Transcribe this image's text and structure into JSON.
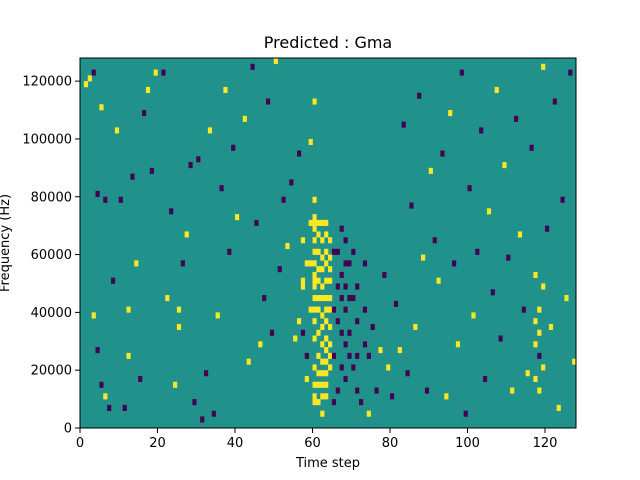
{
  "chart_data": {
    "type": "heatmap",
    "title": "Predicted : Gma",
    "xlabel": "Time step",
    "ylabel": "Frequency (Hz)",
    "xlim": [
      0,
      128
    ],
    "ylim": [
      0,
      128000
    ],
    "x_ticks": [
      0,
      20,
      40,
      60,
      80,
      100,
      120
    ],
    "y_ticks": [
      0,
      20000,
      40000,
      60000,
      80000,
      100000,
      120000
    ],
    "x_tick_labels": [
      "0",
      "20",
      "40",
      "60",
      "80",
      "100",
      "120"
    ],
    "y_tick_labels": [
      "0",
      "20000",
      "40000",
      "60000",
      "80000",
      "100000",
      "120000"
    ],
    "grid": false,
    "colormap": "viridis",
    "value_range": [
      -1,
      1
    ],
    "colors": {
      "-1": "#440154",
      "0": "#21918c",
      "1": "#fde725"
    },
    "n_time_steps": 128,
    "n_frequency_bins": 64,
    "frequency_bin_hz": 2000,
    "background_value": 0,
    "cells": [
      [
        1,
        59,
        1
      ],
      [
        2,
        60,
        1
      ],
      [
        3,
        61,
        -1
      ],
      [
        5,
        55,
        1
      ],
      [
        6,
        39,
        -1
      ],
      [
        7,
        3,
        -1
      ],
      [
        4,
        40,
        -1
      ],
      [
        3,
        19,
        1
      ],
      [
        4,
        13,
        -1
      ],
      [
        5,
        7,
        -1
      ],
      [
        6,
        5,
        1
      ],
      [
        8,
        25,
        -1
      ],
      [
        9,
        51,
        1
      ],
      [
        10,
        39,
        -1
      ],
      [
        11,
        3,
        -1
      ],
      [
        12,
        12,
        1
      ],
      [
        12,
        20,
        1
      ],
      [
        13,
        43,
        -1
      ],
      [
        14,
        28,
        1
      ],
      [
        15,
        8,
        -1
      ],
      [
        16,
        54,
        -1
      ],
      [
        17,
        58,
        1
      ],
      [
        18,
        44,
        -1
      ],
      [
        19,
        61,
        1
      ],
      [
        21,
        61,
        -1
      ],
      [
        22,
        22,
        1
      ],
      [
        23,
        37,
        -1
      ],
      [
        24,
        7,
        1
      ],
      [
        25,
        17,
        1
      ],
      [
        25,
        20,
        1
      ],
      [
        26,
        28,
        -1
      ],
      [
        27,
        33,
        1
      ],
      [
        28,
        45,
        -1
      ],
      [
        29,
        4,
        -1
      ],
      [
        30,
        46,
        -1
      ],
      [
        31,
        1,
        -1
      ],
      [
        32,
        9,
        -1
      ],
      [
        33,
        51,
        1
      ],
      [
        34,
        2,
        -1
      ],
      [
        35,
        19,
        1
      ],
      [
        36,
        41,
        -1
      ],
      [
        37,
        58,
        1
      ],
      [
        38,
        30,
        -1
      ],
      [
        39,
        48,
        -1
      ],
      [
        40,
        36,
        1
      ],
      [
        42,
        53,
        1
      ],
      [
        43,
        11,
        1
      ],
      [
        44,
        62,
        -1
      ],
      [
        45,
        35,
        -1
      ],
      [
        46,
        14,
        1
      ],
      [
        47,
        22,
        -1
      ],
      [
        48,
        56,
        -1
      ],
      [
        49,
        16,
        -1
      ],
      [
        50,
        63,
        1
      ],
      [
        51,
        27,
        -1
      ],
      [
        52,
        39,
        -1
      ],
      [
        53,
        31,
        1
      ],
      [
        54,
        42,
        -1
      ],
      [
        55,
        15,
        1
      ],
      [
        56,
        47,
        -1
      ],
      [
        57,
        25,
        1
      ],
      [
        58,
        12,
        -1
      ],
      [
        59,
        49,
        1
      ],
      [
        60,
        56,
        1
      ],
      [
        56,
        18,
        1
      ],
      [
        57,
        16,
        -1
      ],
      [
        57,
        24,
        1
      ],
      [
        57,
        32,
        1
      ],
      [
        58,
        8,
        1
      ],
      [
        58,
        28,
        1
      ],
      [
        59,
        20,
        1
      ],
      [
        59,
        28,
        1
      ],
      [
        59,
        35,
        1
      ],
      [
        60,
        4,
        1
      ],
      [
        60,
        5,
        1
      ],
      [
        60,
        7,
        1
      ],
      [
        60,
        10,
        1
      ],
      [
        60,
        15,
        1
      ],
      [
        60,
        18,
        1
      ],
      [
        60,
        20,
        1
      ],
      [
        60,
        22,
        1
      ],
      [
        60,
        24,
        1
      ],
      [
        60,
        25,
        1
      ],
      [
        60,
        26,
        1
      ],
      [
        60,
        28,
        1
      ],
      [
        60,
        30,
        1
      ],
      [
        60,
        32,
        1
      ],
      [
        60,
        34,
        1
      ],
      [
        60,
        35,
        1
      ],
      [
        60,
        36,
        1
      ],
      [
        60,
        39,
        1
      ],
      [
        61,
        4,
        1
      ],
      [
        61,
        7,
        1
      ],
      [
        61,
        9,
        1
      ],
      [
        61,
        12,
        1
      ],
      [
        61,
        16,
        1
      ],
      [
        61,
        20,
        1
      ],
      [
        61,
        22,
        1
      ],
      [
        61,
        25,
        1
      ],
      [
        61,
        27,
        1
      ],
      [
        61,
        30,
        1
      ],
      [
        61,
        33,
        1
      ],
      [
        61,
        35,
        1
      ],
      [
        62,
        2,
        1
      ],
      [
        62,
        5,
        1
      ],
      [
        62,
        7,
        1
      ],
      [
        62,
        9,
        1
      ],
      [
        62,
        11,
        1
      ],
      [
        62,
        14,
        1
      ],
      [
        62,
        17,
        1
      ],
      [
        62,
        19,
        1
      ],
      [
        62,
        22,
        1
      ],
      [
        62,
        24,
        1
      ],
      [
        62,
        27,
        1
      ],
      [
        62,
        29,
        1
      ],
      [
        62,
        32,
        1
      ],
      [
        62,
        35,
        1
      ],
      [
        63,
        5,
        1
      ],
      [
        63,
        7,
        1
      ],
      [
        63,
        9,
        1
      ],
      [
        63,
        11,
        1
      ],
      [
        63,
        13,
        1
      ],
      [
        63,
        15,
        1
      ],
      [
        63,
        18,
        1
      ],
      [
        63,
        20,
        1
      ],
      [
        63,
        22,
        1
      ],
      [
        63,
        25,
        1
      ],
      [
        63,
        28,
        1
      ],
      [
        63,
        30,
        1
      ],
      [
        63,
        33,
        1
      ],
      [
        63,
        35,
        1
      ],
      [
        64,
        10,
        1
      ],
      [
        64,
        12,
        1
      ],
      [
        64,
        14,
        1
      ],
      [
        64,
        17,
        1
      ],
      [
        64,
        20,
        1
      ],
      [
        64,
        22,
        1
      ],
      [
        64,
        25,
        1
      ],
      [
        64,
        27,
        1
      ],
      [
        64,
        29,
        1
      ],
      [
        64,
        32,
        1
      ],
      [
        65,
        4,
        -1
      ],
      [
        65,
        12,
        -1
      ],
      [
        65,
        20,
        -1
      ],
      [
        65,
        30,
        -1
      ],
      [
        66,
        6,
        -1
      ],
      [
        66,
        18,
        -1
      ],
      [
        66,
        24,
        -1
      ],
      [
        66,
        30,
        -1
      ],
      [
        67,
        10,
        -1
      ],
      [
        67,
        16,
        -1
      ],
      [
        67,
        22,
        -1
      ],
      [
        67,
        26,
        -1
      ],
      [
        67,
        34,
        -1
      ],
      [
        68,
        8,
        -1
      ],
      [
        68,
        14,
        -1
      ],
      [
        68,
        20,
        -1
      ],
      [
        68,
        24,
        -1
      ],
      [
        68,
        28,
        -1
      ],
      [
        68,
        32,
        -1
      ],
      [
        69,
        12,
        -1
      ],
      [
        69,
        16,
        -1
      ],
      [
        69,
        22,
        -1
      ],
      [
        69,
        28,
        -1
      ],
      [
        70,
        10,
        -1
      ],
      [
        70,
        22,
        -1
      ],
      [
        70,
        30,
        -1
      ],
      [
        71,
        6,
        -1
      ],
      [
        71,
        12,
        -1
      ],
      [
        71,
        18,
        -1
      ],
      [
        71,
        24,
        -1
      ],
      [
        72,
        4,
        -1
      ],
      [
        73,
        14,
        -1
      ],
      [
        73,
        20,
        -1
      ],
      [
        73,
        28,
        -1
      ],
      [
        74,
        2,
        1
      ],
      [
        74,
        12,
        -1
      ],
      [
        75,
        17,
        -1
      ],
      [
        76,
        6,
        -1
      ],
      [
        77,
        13,
        1
      ],
      [
        78,
        26,
        -1
      ],
      [
        79,
        10,
        1
      ],
      [
        80,
        5,
        -1
      ],
      [
        81,
        21,
        -1
      ],
      [
        82,
        13,
        1
      ],
      [
        83,
        52,
        -1
      ],
      [
        84,
        9,
        -1
      ],
      [
        85,
        38,
        -1
      ],
      [
        86,
        17,
        1
      ],
      [
        87,
        57,
        -1
      ],
      [
        88,
        29,
        1
      ],
      [
        89,
        6,
        -1
      ],
      [
        90,
        44,
        1
      ],
      [
        91,
        32,
        -1
      ],
      [
        92,
        25,
        1
      ],
      [
        93,
        47,
        -1
      ],
      [
        94,
        5,
        1
      ],
      [
        95,
        54,
        1
      ],
      [
        96,
        28,
        -1
      ],
      [
        97,
        14,
        1
      ],
      [
        98,
        61,
        -1
      ],
      [
        99,
        2,
        -1
      ],
      [
        100,
        41,
        -1
      ],
      [
        101,
        19,
        1
      ],
      [
        102,
        30,
        -1
      ],
      [
        103,
        51,
        -1
      ],
      [
        104,
        8,
        -1
      ],
      [
        105,
        37,
        1
      ],
      [
        106,
        23,
        -1
      ],
      [
        107,
        58,
        1
      ],
      [
        108,
        15,
        -1
      ],
      [
        109,
        45,
        1
      ],
      [
        110,
        29,
        -1
      ],
      [
        111,
        6,
        1
      ],
      [
        112,
        53,
        -1
      ],
      [
        113,
        33,
        1
      ],
      [
        114,
        20,
        -1
      ],
      [
        115,
        9,
        1
      ],
      [
        116,
        48,
        -1
      ],
      [
        117,
        26,
        1
      ],
      [
        118,
        12,
        -1
      ],
      [
        119,
        62,
        1
      ],
      [
        120,
        34,
        -1
      ],
      [
        121,
        17,
        1
      ],
      [
        122,
        56,
        -1
      ],
      [
        123,
        3,
        1
      ],
      [
        124,
        39,
        -1
      ],
      [
        125,
        22,
        1
      ],
      [
        126,
        61,
        -1
      ],
      [
        127,
        11,
        1
      ],
      [
        117,
        8,
        1
      ],
      [
        117,
        14,
        1
      ],
      [
        117,
        18,
        1
      ],
      [
        118,
        6,
        1
      ],
      [
        118,
        16,
        1
      ],
      [
        118,
        20,
        1
      ],
      [
        119,
        10,
        1
      ],
      [
        119,
        24,
        1
      ]
    ]
  }
}
